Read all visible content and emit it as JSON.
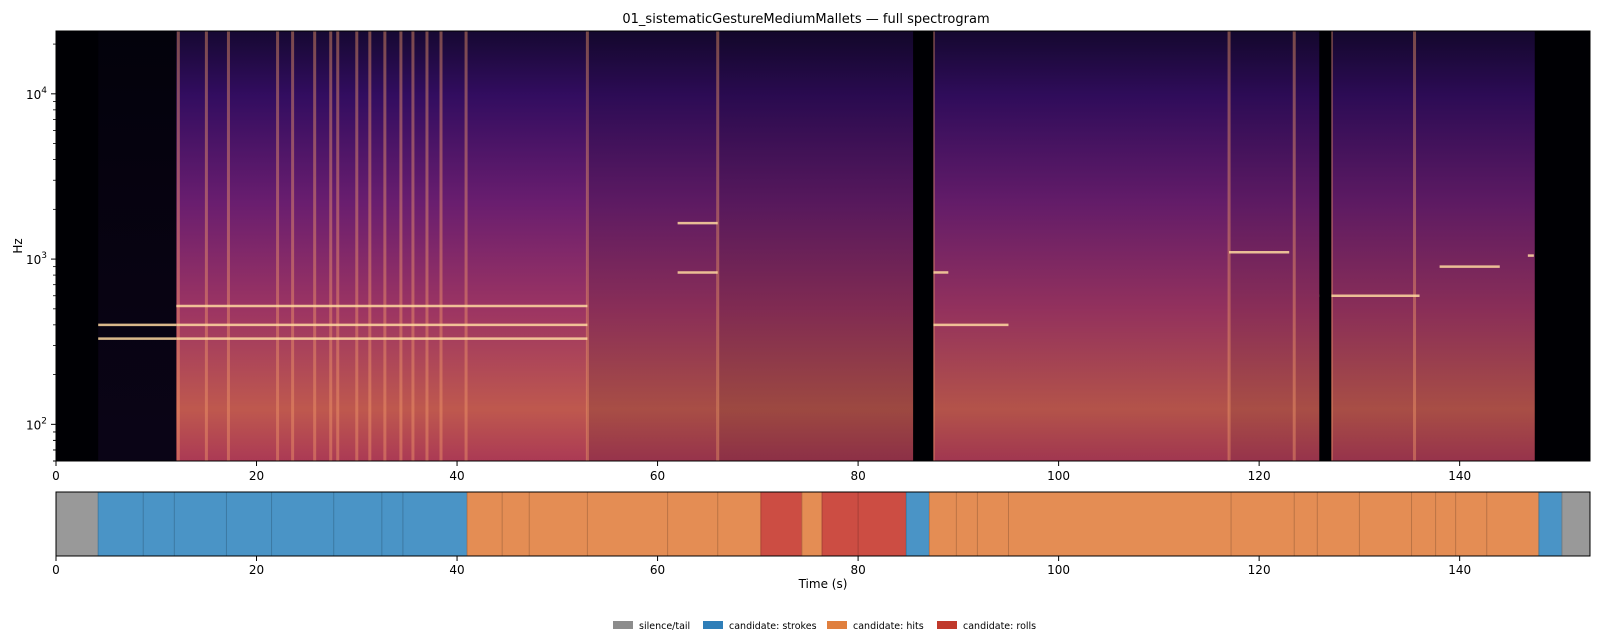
{
  "chart_data": [
    {
      "type": "heatmap",
      "title": "01_sistematicGestureMediumMallets — full spectrogram",
      "xlabel": "",
      "ylabel": "Hz",
      "xlim": [
        0,
        153
      ],
      "ylim": [
        60,
        24000
      ],
      "yscale": "log",
      "colormap": "magma",
      "x_ticks": [
        0,
        20,
        40,
        60,
        80,
        100,
        120,
        140
      ],
      "y_ticks": [
        {
          "value": 100,
          "base": "10",
          "exp": "2"
        },
        {
          "value": 1000,
          "base": "10",
          "exp": "3"
        },
        {
          "value": 10000,
          "base": "10",
          "exp": "4"
        }
      ],
      "active_segments": [
        {
          "start": 4.2,
          "end": 12.0,
          "level": 0.25
        },
        {
          "start": 12.0,
          "end": 53.0,
          "level": 0.85
        },
        {
          "start": 53.0,
          "end": 66.0,
          "level": 0.75
        },
        {
          "start": 66.0,
          "end": 85.5,
          "level": 0.7
        },
        {
          "start": 87.5,
          "end": 117.0,
          "level": 0.8
        },
        {
          "start": 117.0,
          "end": 147.5,
          "level": 0.75
        }
      ],
      "silent_gaps": [
        {
          "start": 0.0,
          "end": 4.2
        },
        {
          "start": 85.5,
          "end": 87.5
        },
        {
          "start": 126.0,
          "end": 127.2
        },
        {
          "start": 147.5,
          "end": 153.0
        }
      ],
      "onsets": [
        12.2,
        15.0,
        17.2,
        22.1,
        23.6,
        25.8,
        27.4,
        28.1,
        30.0,
        31.3,
        32.8,
        34.4,
        35.6,
        37.0,
        38.4,
        40.9,
        53.0,
        66.0,
        87.5,
        117.0,
        123.5,
        127.2,
        135.5
      ],
      "harmonic_lines": [
        {
          "start": 4.2,
          "end": 12.0,
          "freq": 330
        },
        {
          "start": 4.2,
          "end": 12.0,
          "freq": 400
        },
        {
          "start": 12.0,
          "end": 53.0,
          "freq": 330
        },
        {
          "start": 12.0,
          "end": 53.0,
          "freq": 400
        },
        {
          "start": 12.0,
          "end": 53.0,
          "freq": 520
        },
        {
          "start": 62.0,
          "end": 66.0,
          "freq": 830
        },
        {
          "start": 62.0,
          "end": 66.0,
          "freq": 1650
        },
        {
          "start": 87.5,
          "end": 89.0,
          "freq": 830
        },
        {
          "start": 87.5,
          "end": 95.0,
          "freq": 400
        },
        {
          "start": 117.0,
          "end": 123.0,
          "freq": 1100
        },
        {
          "start": 126.0,
          "end": 136.0,
          "freq": 600
        },
        {
          "start": 138.0,
          "end": 144.0,
          "freq": 900
        },
        {
          "start": 146.8,
          "end": 147.4,
          "freq": 1050
        }
      ]
    },
    {
      "type": "segments",
      "xlabel": "Time (s)",
      "xlim": [
        0,
        153
      ],
      "x_ticks": [
        0,
        20,
        40,
        60,
        80,
        100,
        120,
        140
      ],
      "segments": [
        {
          "start": 0.0,
          "end": 4.2,
          "category": "silence"
        },
        {
          "start": 4.2,
          "end": 8.7,
          "category": "strokes"
        },
        {
          "start": 8.7,
          "end": 11.8,
          "category": "strokes"
        },
        {
          "start": 11.8,
          "end": 17.0,
          "category": "strokes"
        },
        {
          "start": 17.0,
          "end": 21.5,
          "category": "strokes"
        },
        {
          "start": 21.5,
          "end": 27.7,
          "category": "strokes"
        },
        {
          "start": 27.7,
          "end": 32.5,
          "category": "strokes"
        },
        {
          "start": 32.5,
          "end": 34.6,
          "category": "strokes"
        },
        {
          "start": 34.6,
          "end": 41.0,
          "category": "strokes"
        },
        {
          "start": 41.0,
          "end": 44.5,
          "category": "hits"
        },
        {
          "start": 44.5,
          "end": 47.2,
          "category": "hits"
        },
        {
          "start": 47.2,
          "end": 53.0,
          "category": "hits"
        },
        {
          "start": 53.0,
          "end": 61.0,
          "category": "hits"
        },
        {
          "start": 61.0,
          "end": 66.0,
          "category": "hits"
        },
        {
          "start": 66.0,
          "end": 70.3,
          "category": "hits"
        },
        {
          "start": 70.3,
          "end": 74.4,
          "category": "rolls"
        },
        {
          "start": 74.4,
          "end": 76.4,
          "category": "hits"
        },
        {
          "start": 76.4,
          "end": 80.0,
          "category": "rolls"
        },
        {
          "start": 80.0,
          "end": 84.8,
          "category": "rolls"
        },
        {
          "start": 84.8,
          "end": 87.1,
          "category": "strokes"
        },
        {
          "start": 87.1,
          "end": 89.8,
          "category": "hits"
        },
        {
          "start": 89.8,
          "end": 91.9,
          "category": "hits"
        },
        {
          "start": 91.9,
          "end": 95.0,
          "category": "hits"
        },
        {
          "start": 95.0,
          "end": 117.2,
          "category": "hits"
        },
        {
          "start": 117.2,
          "end": 123.5,
          "category": "hits"
        },
        {
          "start": 123.5,
          "end": 125.8,
          "category": "hits"
        },
        {
          "start": 125.8,
          "end": 130.0,
          "category": "hits"
        },
        {
          "start": 130.0,
          "end": 135.2,
          "category": "hits"
        },
        {
          "start": 135.2,
          "end": 137.6,
          "category": "hits"
        },
        {
          "start": 137.6,
          "end": 139.6,
          "category": "hits"
        },
        {
          "start": 139.6,
          "end": 142.7,
          "category": "hits"
        },
        {
          "start": 142.7,
          "end": 147.9,
          "category": "hits"
        },
        {
          "start": 147.9,
          "end": 150.2,
          "category": "strokes"
        },
        {
          "start": 150.2,
          "end": 153.0,
          "category": "silence"
        }
      ]
    }
  ],
  "categories": {
    "silence": {
      "color": "#999999"
    },
    "strokes": {
      "color": "#4a94c6"
    },
    "hits": {
      "color": "#e48d54"
    },
    "rolls": {
      "color": "#cc4d43"
    }
  },
  "legend": {
    "position": "bottom-center",
    "items": [
      {
        "key": "silence",
        "label": "silence/tail",
        "color": "#8c8c8c"
      },
      {
        "key": "strokes",
        "label": "candidate: strokes",
        "color": "#2e7eb8"
      },
      {
        "key": "hits",
        "label": "candidate: hits",
        "color": "#e07f3e"
      },
      {
        "key": "rolls",
        "label": "candidate: rolls",
        "color": "#c0392b"
      }
    ]
  }
}
